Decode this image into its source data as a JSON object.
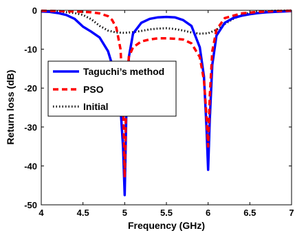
{
  "chart_data": {
    "type": "line",
    "xlabel": "Frequency (GHz)",
    "ylabel": "Return loss (dB)",
    "xlim": [
      4,
      7
    ],
    "ylim": [
      -50,
      0
    ],
    "xticks": [
      "4",
      "4.5",
      "5",
      "5.5",
      "6",
      "6.5",
      "7"
    ],
    "yticks": [
      "0",
      "-10",
      "-20",
      "-30",
      "-40",
      "-50"
    ],
    "grid": false,
    "legend_position": "middle-left",
    "series": [
      {
        "name": "Taguchi’s method",
        "color": "#0000ff",
        "style": "solid",
        "x": [
          4.0,
          4.1,
          4.2,
          4.3,
          4.4,
          4.5,
          4.6,
          4.7,
          4.8,
          4.9,
          4.95,
          4.98,
          5.0,
          5.02,
          5.05,
          5.1,
          5.2,
          5.3,
          5.4,
          5.5,
          5.6,
          5.7,
          5.8,
          5.9,
          5.95,
          5.98,
          6.0,
          6.02,
          6.05,
          6.1,
          6.2,
          6.3,
          6.4,
          6.5,
          6.6,
          6.7,
          6.8,
          6.9,
          7.0
        ],
        "y": [
          -0.3,
          -0.4,
          -0.7,
          -1.2,
          -2.2,
          -4.2,
          -5.5,
          -7.0,
          -10.5,
          -17.5,
          -25.0,
          -35.0,
          -47.5,
          -26.0,
          -12.0,
          -6.0,
          -3.2,
          -2.2,
          -1.8,
          -1.7,
          -1.8,
          -2.5,
          -4.0,
          -9.5,
          -17.0,
          -30.0,
          -41.0,
          -28.0,
          -14.0,
          -6.5,
          -3.2,
          -2.0,
          -1.4,
          -1.0,
          -0.7,
          -0.5,
          -0.4,
          -0.3,
          -0.2
        ]
      },
      {
        "name": "PSO",
        "color": "#ff0000",
        "style": "dashed",
        "x": [
          4.0,
          4.2,
          4.4,
          4.6,
          4.7,
          4.8,
          4.85,
          4.9,
          4.95,
          4.98,
          5.0,
          5.02,
          5.05,
          5.1,
          5.2,
          5.3,
          5.4,
          5.5,
          5.6,
          5.7,
          5.8,
          5.9,
          5.95,
          5.98,
          6.0,
          6.02,
          6.05,
          6.1,
          6.2,
          6.4,
          6.6,
          6.8,
          7.0
        ],
        "y": [
          -0.1,
          -0.2,
          -0.3,
          -0.5,
          -0.8,
          -1.5,
          -2.5,
          -4.5,
          -10.0,
          -22.0,
          -43.0,
          -20.0,
          -12.0,
          -9.5,
          -8.0,
          -7.5,
          -7.2,
          -7.2,
          -7.3,
          -7.5,
          -8.5,
          -12.0,
          -18.0,
          -27.0,
          -35.0,
          -22.0,
          -10.5,
          -5.0,
          -2.0,
          -0.8,
          -0.4,
          -0.2,
          -0.1
        ]
      },
      {
        "name": "Initial",
        "color": "#000000",
        "style": "dotted",
        "x": [
          4.0,
          4.2,
          4.4,
          4.5,
          4.6,
          4.7,
          4.8,
          4.9,
          5.0,
          5.1,
          5.2,
          5.3,
          5.4,
          5.5,
          5.6,
          5.7,
          5.8,
          5.9,
          6.0,
          6.1,
          6.2,
          6.3,
          6.4,
          6.5,
          6.6,
          6.8,
          7.0
        ],
        "y": [
          -0.2,
          -0.3,
          -0.7,
          -1.2,
          -2.3,
          -4.0,
          -5.2,
          -5.7,
          -5.8,
          -5.6,
          -5.3,
          -4.9,
          -4.7,
          -4.6,
          -4.8,
          -5.2,
          -5.7,
          -6.0,
          -5.9,
          -5.0,
          -3.5,
          -2.2,
          -1.2,
          -0.6,
          -0.3,
          -0.1,
          -0.05
        ]
      }
    ]
  }
}
